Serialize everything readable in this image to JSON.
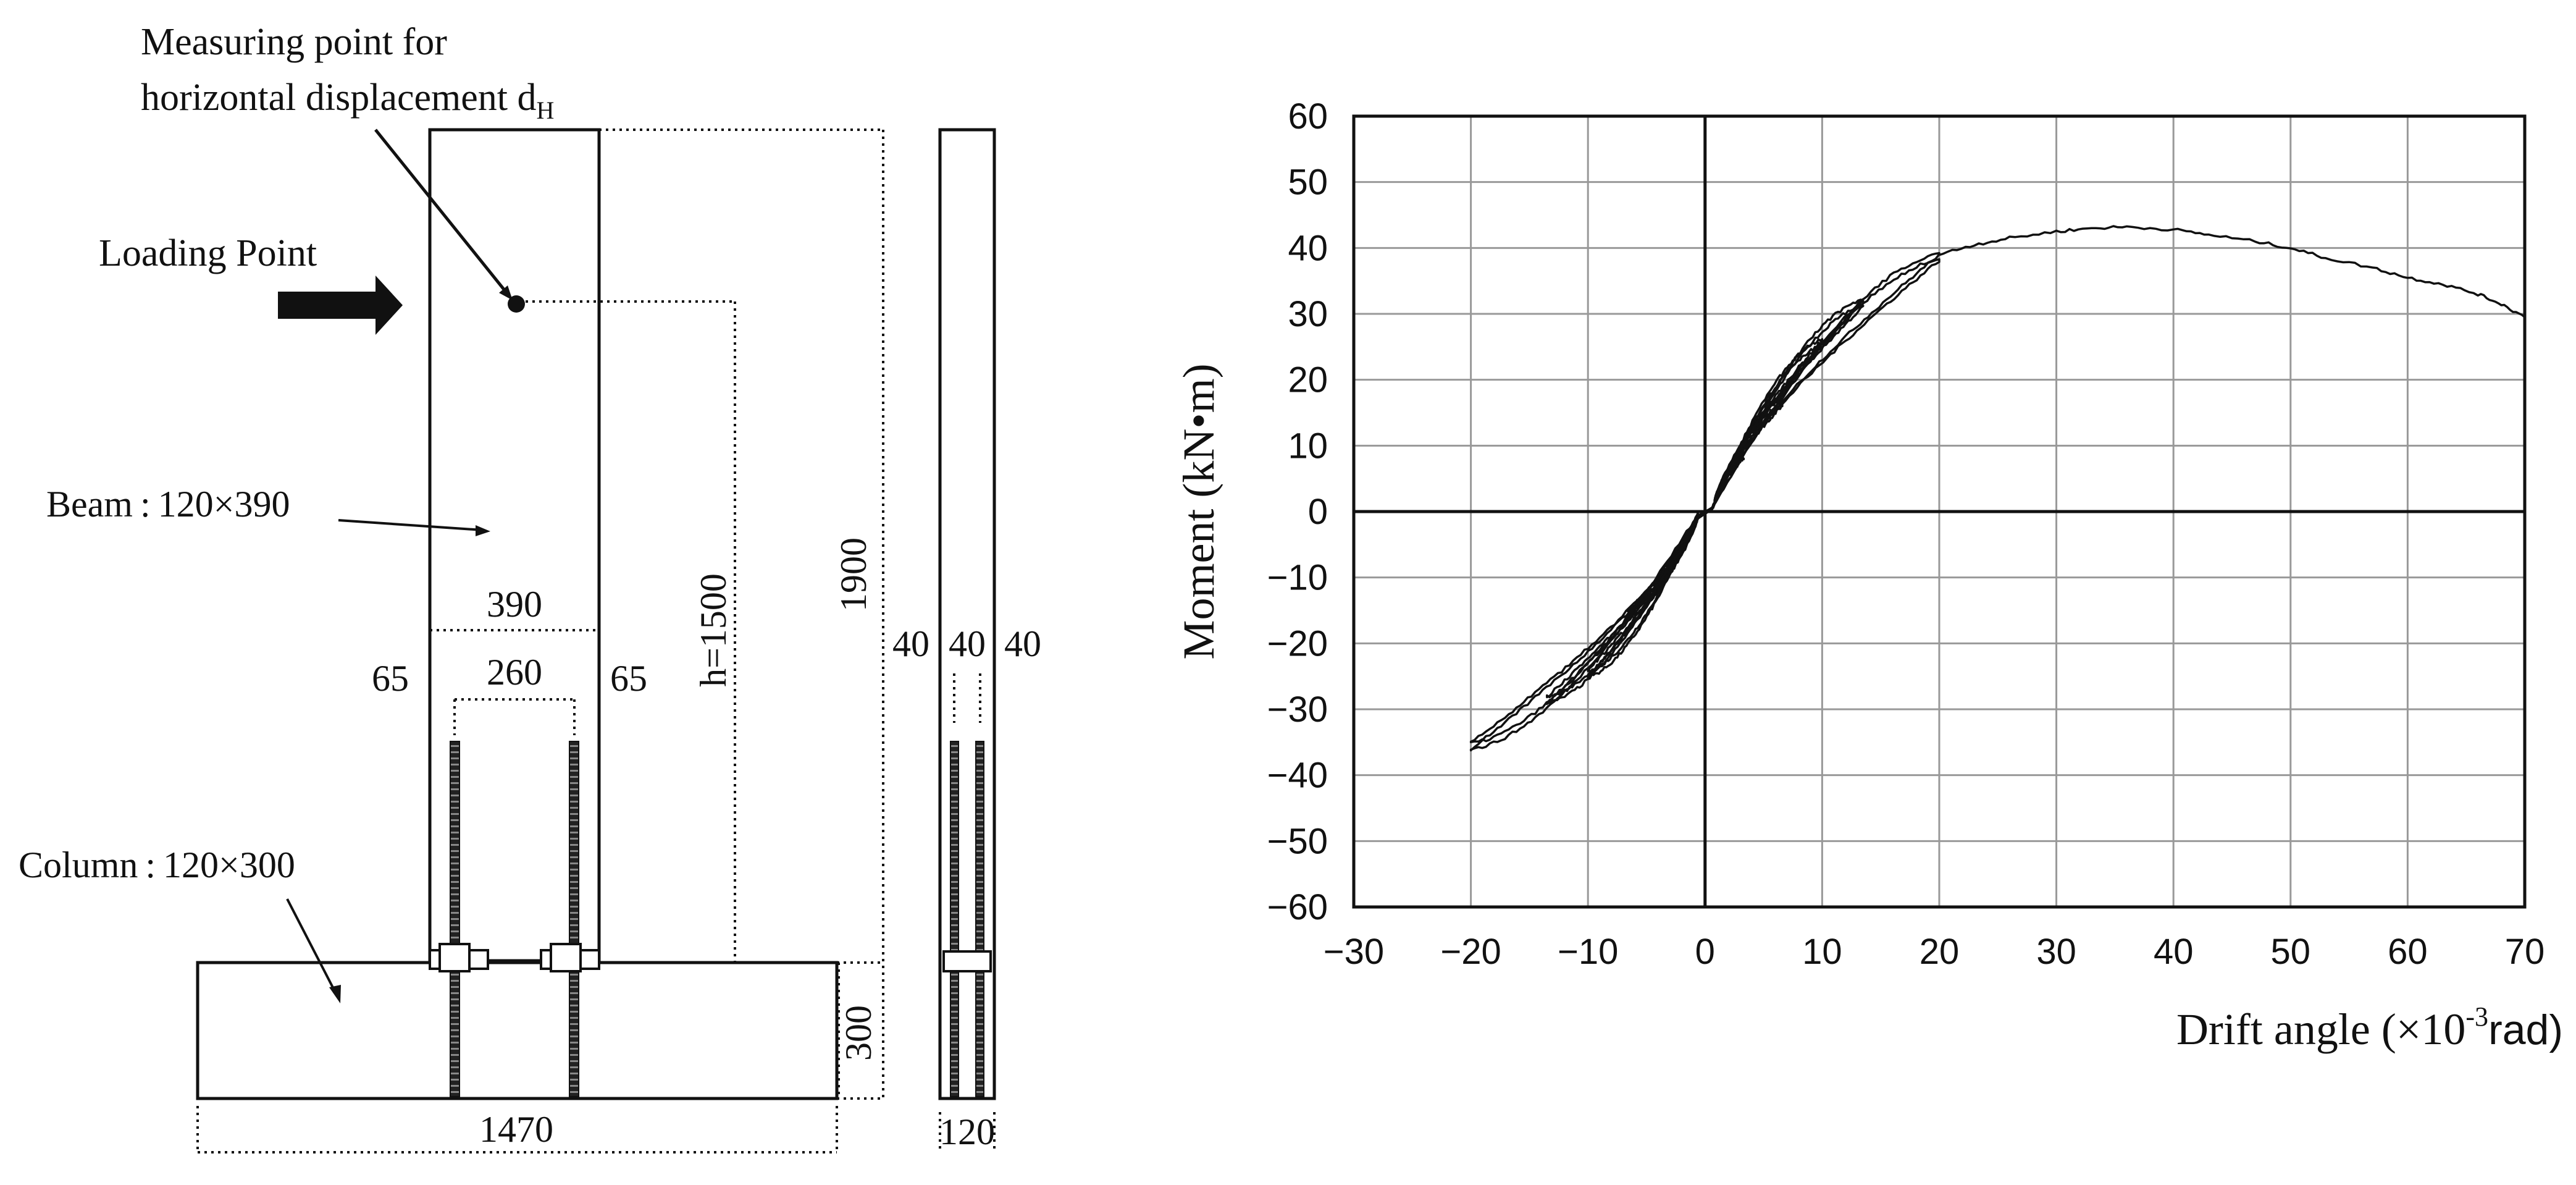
{
  "diagram": {
    "measuring_point_line1": "Measuring point for",
    "measuring_point_line2": "horizontal displacement d",
    "measuring_point_subscript": "H",
    "loading_point": "Loading Point",
    "beam_label": "Beam : 120×390",
    "column_label": "Column : 120×300",
    "dim_390": "390",
    "dim_260": "260",
    "dim_65_left": "65",
    "dim_65_right": "65",
    "dim_h": "h=1500",
    "dim_1900": "1900",
    "dim_300": "300",
    "dim_1470": "1470",
    "dim_40_a": "40",
    "dim_40_b": "40",
    "dim_40_c": "40",
    "dim_120": "120"
  },
  "chart_data": {
    "type": "line",
    "xlabel": "Drift angle (×10",
    "xlabel_exponent": "-3",
    "xlabel_unit": "rad)",
    "ylabel": "Moment (kN•m)",
    "xlim": [
      -30,
      70
    ],
    "ylim": [
      -60,
      60
    ],
    "x_ticks": [
      -30,
      -20,
      -10,
      0,
      10,
      20,
      30,
      40,
      50,
      60,
      70
    ],
    "y_ticks": [
      60,
      50,
      40,
      30,
      20,
      10,
      0,
      -10,
      -20,
      -30,
      -40,
      -50,
      -60
    ],
    "x_tick_labels": [
      "−30",
      "−20",
      "−10",
      "0",
      "10",
      "20",
      "30",
      "40",
      "50",
      "60",
      "70"
    ],
    "y_tick_labels": [
      "60",
      "50",
      "40",
      "30",
      "20",
      "10",
      "0",
      "−10",
      "−20",
      "−30",
      "−40",
      "−50",
      "−60"
    ],
    "grid": true,
    "series": [
      {
        "loops": [
          {
            "amp_pos": 3.3,
            "m_pos": 9,
            "amp_neg": -3.3,
            "m_neg": -9
          },
          {
            "amp_pos": 6.6,
            "m_pos": 17,
            "amp_neg": -6.6,
            "m_neg": -16
          },
          {
            "amp_pos": 10,
            "m_pos": 26,
            "amp_neg": -10,
            "m_neg": -25
          },
          {
            "amp_pos": 13.5,
            "m_pos": 32,
            "amp_neg": -13.5,
            "m_neg": -29
          },
          {
            "amp_pos": 20,
            "m_pos": 39,
            "amp_neg": -20,
            "m_neg": -36
          }
        ],
        "envelope": [
          [
            20,
            39
          ],
          [
            23,
            40.5
          ],
          [
            26,
            41.5
          ],
          [
            30,
            42.5
          ],
          [
            33,
            43
          ],
          [
            36,
            43.2
          ],
          [
            40,
            42.8
          ],
          [
            43,
            42
          ],
          [
            47,
            41
          ],
          [
            50,
            40
          ],
          [
            53,
            38.5
          ],
          [
            57,
            37
          ],
          [
            60,
            35.5
          ],
          [
            63,
            34.5
          ],
          [
            66,
            33
          ],
          [
            68,
            31.5
          ],
          [
            70,
            29.5
          ]
        ]
      }
    ]
  }
}
